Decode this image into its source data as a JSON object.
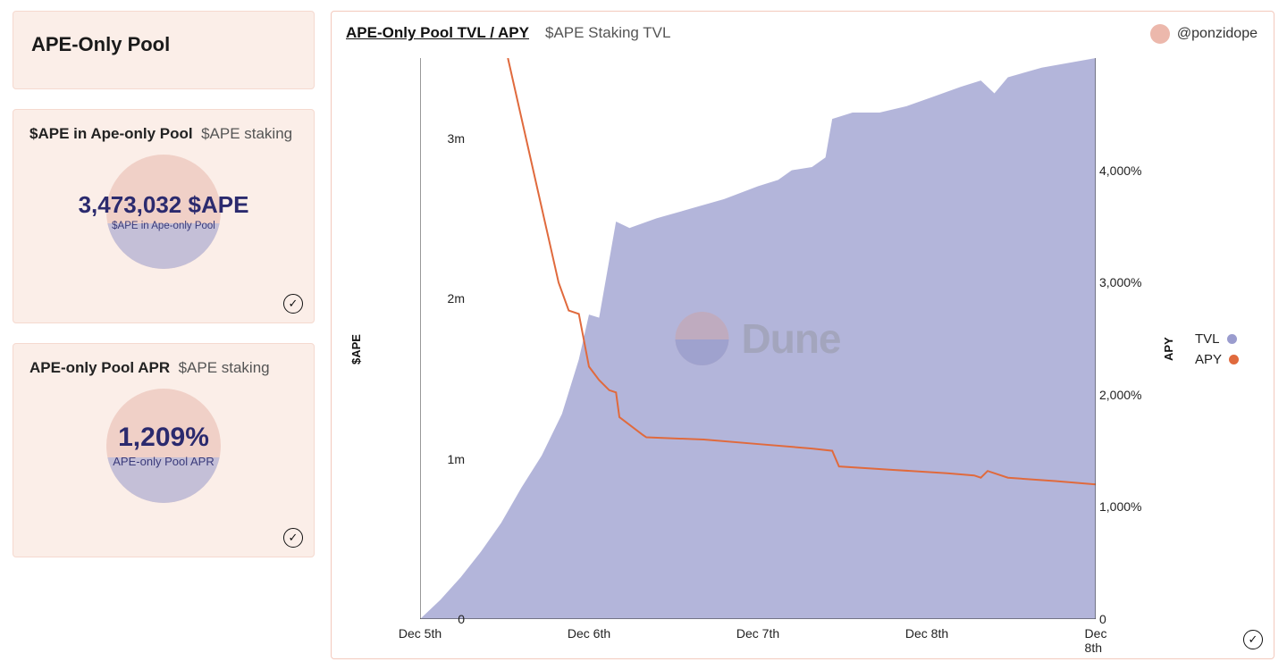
{
  "sidebar": {
    "header": {
      "title": "APE-Only Pool"
    },
    "metrics": [
      {
        "title_strong": "$APE in Ape-only Pool",
        "title_thin": "$APE staking",
        "value": "3,473,032 $APE",
        "caption": "$APE in Ape-only Pool"
      },
      {
        "title_strong": "APE-only Pool APR",
        "title_thin": "$APE staking",
        "value": "1,209%",
        "caption": "APE-only Pool APR"
      }
    ]
  },
  "chart": {
    "title": "APE-Only Pool TVL / APY",
    "subtitle": "$APE Staking TVL",
    "author": "@ponzidope",
    "watermark": "Dune",
    "y_left": {
      "label": "$APE",
      "min": 0,
      "max": 3500000,
      "ticks": [
        0,
        1000000,
        2000000,
        3000000
      ],
      "tick_labels": [
        "0",
        "1m",
        "2m",
        "3m"
      ]
    },
    "y_right": {
      "label": "APY",
      "min": 0,
      "max": 5000,
      "ticks": [
        0,
        1000,
        2000,
        3000,
        4000
      ],
      "tick_labels": [
        "0",
        "1,000%",
        "2,000%",
        "3,000%",
        "4,000%"
      ]
    },
    "x": {
      "ticks": [
        0,
        0.25,
        0.5,
        0.75,
        1.0
      ],
      "tick_labels": [
        "Dec 5th",
        "Dec 6th",
        "Dec 7th",
        "Dec 8th",
        "Dec 8th"
      ]
    },
    "legend": [
      {
        "label": "TVL",
        "color": "#9a9cce"
      },
      {
        "label": "APY",
        "color": "#e06a3d"
      }
    ],
    "colors": {
      "tvl_fill": "#a6a8d4",
      "tvl_fill_opacity": 0.85,
      "apy_stroke": "#e06a3d",
      "apy_stroke_width": 2,
      "axis": "#333333",
      "panel_border": "#f3c9bd",
      "tile_bg": "#fbeee8"
    },
    "tvl_series": [
      {
        "t": 0.0,
        "v": 0
      },
      {
        "t": 0.03,
        "v": 120000
      },
      {
        "t": 0.06,
        "v": 260000
      },
      {
        "t": 0.09,
        "v": 420000
      },
      {
        "t": 0.12,
        "v": 600000
      },
      {
        "t": 0.15,
        "v": 820000
      },
      {
        "t": 0.18,
        "v": 1020000
      },
      {
        "t": 0.21,
        "v": 1280000
      },
      {
        "t": 0.235,
        "v": 1620000
      },
      {
        "t": 0.25,
        "v": 1900000
      },
      {
        "t": 0.265,
        "v": 1880000
      },
      {
        "t": 0.29,
        "v": 2480000
      },
      {
        "t": 0.31,
        "v": 2440000
      },
      {
        "t": 0.35,
        "v": 2500000
      },
      {
        "t": 0.4,
        "v": 2560000
      },
      {
        "t": 0.45,
        "v": 2620000
      },
      {
        "t": 0.5,
        "v": 2700000
      },
      {
        "t": 0.53,
        "v": 2740000
      },
      {
        "t": 0.55,
        "v": 2800000
      },
      {
        "t": 0.58,
        "v": 2820000
      },
      {
        "t": 0.6,
        "v": 2880000
      },
      {
        "t": 0.61,
        "v": 3120000
      },
      {
        "t": 0.64,
        "v": 3160000
      },
      {
        "t": 0.68,
        "v": 3160000
      },
      {
        "t": 0.72,
        "v": 3200000
      },
      {
        "t": 0.76,
        "v": 3260000
      },
      {
        "t": 0.8,
        "v": 3320000
      },
      {
        "t": 0.83,
        "v": 3360000
      },
      {
        "t": 0.85,
        "v": 3280000
      },
      {
        "t": 0.87,
        "v": 3380000
      },
      {
        "t": 0.92,
        "v": 3440000
      },
      {
        "t": 0.96,
        "v": 3470000
      },
      {
        "t": 1.0,
        "v": 3500000
      }
    ],
    "apy_series": [
      {
        "t": 0.13,
        "v": 5000
      },
      {
        "t": 0.145,
        "v": 4600
      },
      {
        "t": 0.16,
        "v": 4200
      },
      {
        "t": 0.175,
        "v": 3800
      },
      {
        "t": 0.19,
        "v": 3400
      },
      {
        "t": 0.205,
        "v": 3000
      },
      {
        "t": 0.22,
        "v": 2750
      },
      {
        "t": 0.235,
        "v": 2720
      },
      {
        "t": 0.25,
        "v": 2250
      },
      {
        "t": 0.265,
        "v": 2130
      },
      {
        "t": 0.28,
        "v": 2040
      },
      {
        "t": 0.29,
        "v": 2020
      },
      {
        "t": 0.295,
        "v": 1800
      },
      {
        "t": 0.33,
        "v": 1640
      },
      {
        "t": 0.335,
        "v": 1620
      },
      {
        "t": 0.42,
        "v": 1600
      },
      {
        "t": 0.5,
        "v": 1560
      },
      {
        "t": 0.58,
        "v": 1520
      },
      {
        "t": 0.61,
        "v": 1500
      },
      {
        "t": 0.62,
        "v": 1360
      },
      {
        "t": 0.7,
        "v": 1330
      },
      {
        "t": 0.78,
        "v": 1300
      },
      {
        "t": 0.82,
        "v": 1280
      },
      {
        "t": 0.83,
        "v": 1260
      },
      {
        "t": 0.84,
        "v": 1320
      },
      {
        "t": 0.87,
        "v": 1260
      },
      {
        "t": 0.94,
        "v": 1230
      },
      {
        "t": 1.0,
        "v": 1200
      }
    ]
  }
}
